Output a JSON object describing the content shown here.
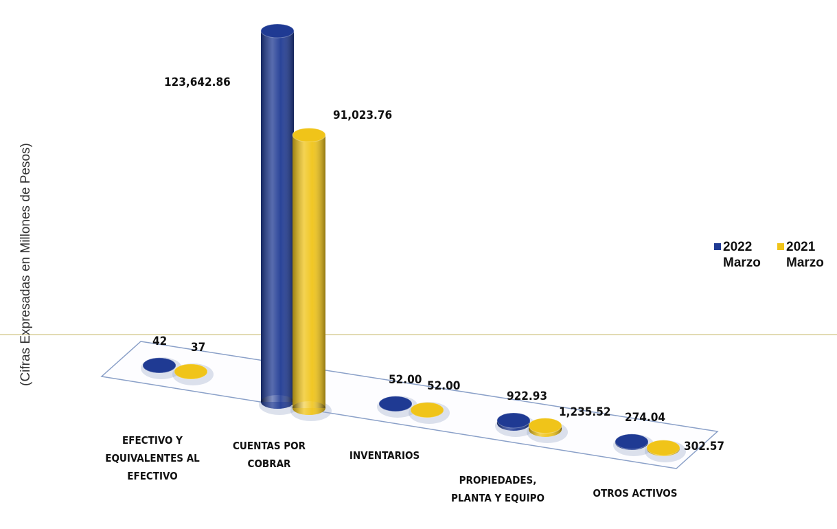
{
  "chart_data": {
    "type": "bar3d",
    "y_label": "(Cifras Expresadas en Millones de Pesos)",
    "categories": [
      "EFECTIVO Y EQUIVALENTES AL EFECTIVO",
      "CUENTAS POR COBRAR",
      "INVENTARIOS",
      "PROPIEDADES, PLANTA Y EQUIPO",
      "OTROS ACTIVOS"
    ],
    "series": [
      {
        "name": "2022 Marzo",
        "color": "#1f3a93",
        "values": [
          42,
          123642.86,
          52,
          922.93,
          274.04
        ],
        "value_labels": [
          "42",
          "123,642.86",
          "52.00",
          "922.93",
          "274.04"
        ]
      },
      {
        "name": "2021 Marzo",
        "color": "#f0c419",
        "values": [
          37,
          91023.76,
          52,
          1235.52,
          302.57
        ],
        "value_labels": [
          "37",
          "91,023.76",
          "52.00",
          "1,235.52",
          "302.57"
        ]
      }
    ]
  }
}
